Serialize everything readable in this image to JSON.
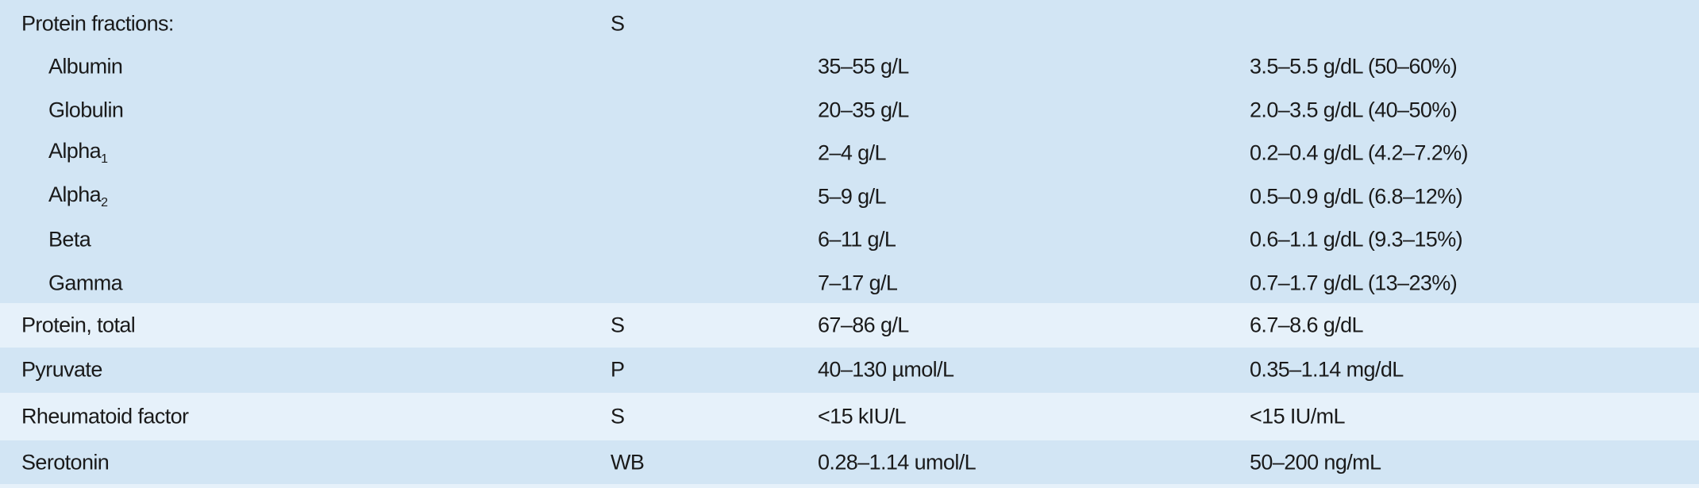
{
  "table": {
    "rows": [
      {
        "test": "Protein fractions:",
        "specimen": "S"
      },
      {
        "test": "Albumin",
        "si": "35–55 g/L",
        "conventional": "3.5–5.5 g/dL (50–60%)"
      },
      {
        "test": "Globulin",
        "si": "20–35 g/L",
        "conventional": "2.0–3.5 g/dL (40–50%)"
      },
      {
        "test": {
          "text": "Alpha",
          "sub": "1"
        },
        "si": "2–4 g/L",
        "conventional": "0.2–0.4 g/dL (4.2–7.2%)"
      },
      {
        "test": {
          "text": "Alpha",
          "sub": "2"
        },
        "si": "5–9 g/L",
        "conventional": "0.5–0.9 g/dL (6.8–12%)"
      },
      {
        "test": "Beta",
        "si": "6–11 g/L",
        "conventional": "0.6–1.1 g/dL (9.3–15%)"
      },
      {
        "test": "Gamma",
        "si": "7–17 g/L",
        "conventional": "0.7–1.7 g/dL (13–23%)"
      },
      {
        "test": "Protein, total",
        "specimen": "S",
        "si": "67–86 g/L",
        "conventional": "6.7–8.6 g/dL"
      },
      {
        "test": "Pyruvate",
        "specimen": "P",
        "si": "40–130 µmol/L",
        "conventional": "0.35–1.14 mg/dL"
      },
      {
        "test": "Rheumatoid factor",
        "specimen": "S",
        "si": "<15 kIU/L",
        "conventional": "<15 IU/mL"
      },
      {
        "test": "Serotonin",
        "specimen": "WB",
        "si": "0.28–1.14 umol/L",
        "conventional": "50–200 ng/mL"
      }
    ]
  }
}
